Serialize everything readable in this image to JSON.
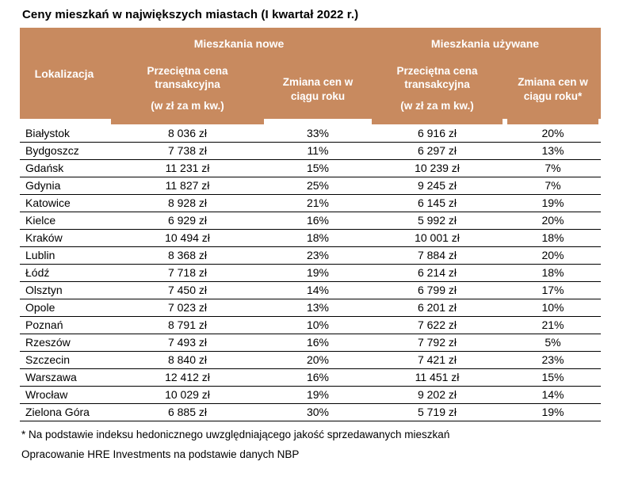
{
  "title": "Ceny mieszkań w największych miastach (I kwartał 2022 r.)",
  "colors": {
    "header_bg": "#C88A5F",
    "header_text": "#FFFFFF",
    "row_line": "#000000",
    "body_text": "#000000"
  },
  "chart_data": {
    "type": "table",
    "title": "Ceny mieszkań w największych miastach (I kwartał 2022 r.)",
    "column_groups": [
      {
        "label": "Mieszkania nowe",
        "span": 2
      },
      {
        "label": "Mieszkania używane",
        "span": 2
      }
    ],
    "columns": [
      {
        "label": "Lokalizacja"
      },
      {
        "line1": "Przeciętna cena transakcyjna",
        "line2": "(w zł za m kw.)"
      },
      {
        "line1": "Zmiana cen w ciągu roku",
        "line2": ""
      },
      {
        "line1": "Przeciętna cena transakcyjna",
        "line2": "(w zł za m kw.)"
      },
      {
        "line1": "Zmiana cen w ciągu roku*",
        "line2": ""
      }
    ],
    "rows": [
      [
        "Białystok",
        "8 036 zł",
        "33%",
        "6 916 zł",
        "20%"
      ],
      [
        "Bydgoszcz",
        "7 738 zł",
        "11%",
        "6 297 zł",
        "13%"
      ],
      [
        "Gdańsk",
        "11 231 zł",
        "15%",
        "10 239 zł",
        "7%"
      ],
      [
        "Gdynia",
        "11 827 zł",
        "25%",
        "9 245 zł",
        "7%"
      ],
      [
        "Katowice",
        "8 928 zł",
        "21%",
        "6 145 zł",
        "19%"
      ],
      [
        "Kielce",
        "6 929 zł",
        "16%",
        "5 992 zł",
        "20%"
      ],
      [
        "Kraków",
        "10 494 zł",
        "18%",
        "10 001 zł",
        "18%"
      ],
      [
        "Lublin",
        "8 368 zł",
        "23%",
        "7 884 zł",
        "20%"
      ],
      [
        "Łódź",
        "7 718 zł",
        "19%",
        "6 214 zł",
        "18%"
      ],
      [
        "Olsztyn",
        "7 450 zł",
        "14%",
        "6 799 zł",
        "17%"
      ],
      [
        "Opole",
        "7 023 zł",
        "13%",
        "6 201 zł",
        "10%"
      ],
      [
        "Poznań",
        "8 791 zł",
        "10%",
        "7 622 zł",
        "21%"
      ],
      [
        "Rzeszów",
        "7 493 zł",
        "16%",
        "7 792 zł",
        "5%"
      ],
      [
        "Szczecin",
        "8 840 zł",
        "20%",
        "7 421 zł",
        "23%"
      ],
      [
        "Warszawa",
        "12 412 zł",
        "16%",
        "11 451 zł",
        "15%"
      ],
      [
        "Wrocław",
        "10 029 zł",
        "19%",
        "9 202 zł",
        "14%"
      ],
      [
        "Zielona Góra",
        "6 885 zł",
        "30%",
        "5 719 zł",
        "19%"
      ]
    ],
    "footnotes": [
      "* Na podstawie indeksu hedonicznego uwzględniającego jakość sprzedawanych mieszkań",
      "Opracowanie HRE Investments na podstawie danych NBP"
    ]
  }
}
